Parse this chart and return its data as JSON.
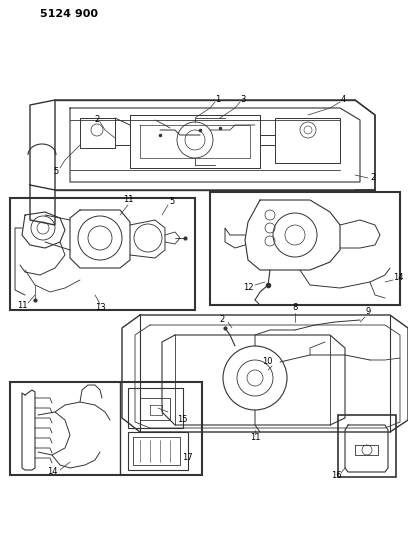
{
  "title": "5124 900",
  "bg_color": "#ffffff",
  "lc": "#333333",
  "fig_width": 4.08,
  "fig_height": 5.33,
  "dpi": 100
}
